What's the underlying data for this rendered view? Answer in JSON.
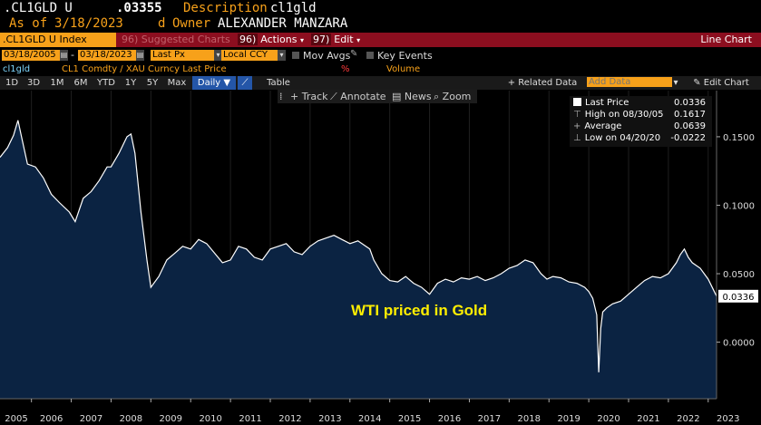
{
  "header": {
    "ticker": ".CL1GLD U",
    "price": ".03355",
    "description_label": "Description",
    "description_value": "cl1gld",
    "asof_label": "As of",
    "asof_value": "3/18/2023",
    "d_label": "d",
    "owner_label": "Owner",
    "owner_value": "ALEXANDER MANZARA"
  },
  "funcbar": {
    "security": ".CL1GLD U Index",
    "suggested": "Suggested Charts",
    "suggested_num": "96)",
    "actions": "Actions",
    "actions_num": "96)",
    "edit": "Edit",
    "edit_num": "97)",
    "title": "Line Chart"
  },
  "controls": {
    "start_date": "03/18/2005",
    "end_date": "03/18/2023",
    "field": "Last Px",
    "currency": "Local CCY",
    "mov_avgs": "Mov Avgs",
    "key_events": "Key Events"
  },
  "legend_row": {
    "series_id": "cl1gld",
    "series_desc": "CL1 Comdty / XAU Curncy Last Price",
    "pct": "%",
    "volume": "Volume"
  },
  "tabs": [
    "1D",
    "3D",
    "1M",
    "6M",
    "YTD",
    "1Y",
    "5Y",
    "Max"
  ],
  "period": "Daily",
  "table_label": "Table",
  "related_data": "Related Data",
  "add_data_placeholder": "Add Data",
  "edit_chart": "Edit Chart",
  "toolbar": {
    "track": "Track",
    "annotate": "Annotate",
    "news": "News",
    "zoom": "Zoom"
  },
  "legend_box": {
    "last_price_label": "Last Price",
    "last_price_value": "0.0336",
    "high_label": "High on 08/30/05",
    "high_value": "0.1617",
    "average_label": "Average",
    "average_value": "0.0639",
    "low_label": "Low on 04/20/20",
    "low_value": "-0.0222"
  },
  "annotation": "WTI priced in Gold",
  "last_value_tag": "0.0336",
  "colors": {
    "accent_orange": "#f7a11a",
    "bar_red": "#8c0e1f",
    "area_fill": "#0b2342",
    "line": "#ffffff",
    "annotation": "#ffee00"
  },
  "chart_data": {
    "type": "area",
    "title": "",
    "xlabel": "",
    "ylabel": "",
    "ylim": [
      -0.0413,
      0.1837
    ],
    "y_ticks": [
      "0.1500",
      "0.1000",
      "0.0500",
      "0.0000"
    ],
    "y_tick_values": [
      0.15,
      0.1,
      0.05,
      0.0
    ],
    "x_ticks": [
      "2005",
      "2006",
      "2007",
      "2008",
      "2009",
      "2010",
      "2011",
      "2012",
      "2013",
      "2014",
      "2015",
      "2016",
      "2017",
      "2018",
      "2019",
      "2020",
      "2021",
      "2022",
      "2023"
    ],
    "x_tick_years": [
      2005,
      2006,
      2007,
      2008,
      2009,
      2010,
      2011,
      2012,
      2013,
      2014,
      2015,
      2016,
      2017,
      2018,
      2019,
      2020,
      2021,
      2022,
      2023
    ],
    "xlim": [
      2005.21,
      2023.21
    ],
    "series": [
      {
        "x": [
          2005.21,
          2005.4,
          2005.55,
          2005.66,
          2005.75,
          2005.9,
          2006.1,
          2006.3,
          2006.5,
          2006.7,
          2006.95,
          2007.1,
          2007.3,
          2007.5,
          2007.7,
          2007.9,
          2008.0,
          2008.2,
          2008.4,
          2008.5,
          2008.6,
          2008.75,
          2008.9,
          2009.0,
          2009.2,
          2009.4,
          2009.6,
          2009.8,
          2010.0,
          2010.2,
          2010.4,
          2010.6,
          2010.8,
          2011.0,
          2011.2,
          2011.4,
          2011.6,
          2011.8,
          2012.0,
          2012.2,
          2012.4,
          2012.6,
          2012.8,
          2013.0,
          2013.2,
          2013.4,
          2013.6,
          2013.8,
          2014.0,
          2014.2,
          2014.4,
          2014.5,
          2014.6,
          2014.8,
          2015.0,
          2015.2,
          2015.4,
          2015.6,
          2015.8,
          2016.0,
          2016.2,
          2016.4,
          2016.6,
          2016.8,
          2017.0,
          2017.2,
          2017.4,
          2017.6,
          2017.8,
          2018.0,
          2018.2,
          2018.4,
          2018.6,
          2018.8,
          2018.95,
          2019.1,
          2019.3,
          2019.5,
          2019.7,
          2019.9,
          2020.0,
          2020.1,
          2020.2,
          2020.25,
          2020.3,
          2020.35,
          2020.45,
          2020.6,
          2020.8,
          2021.0,
          2021.2,
          2021.4,
          2021.6,
          2021.8,
          2022.0,
          2022.2,
          2022.3,
          2022.4,
          2022.5,
          2022.6,
          2022.8,
          2023.0,
          2023.21
        ],
        "y": [
          0.135,
          0.142,
          0.151,
          0.162,
          0.15,
          0.13,
          0.128,
          0.12,
          0.108,
          0.102,
          0.095,
          0.088,
          0.105,
          0.11,
          0.118,
          0.128,
          0.128,
          0.138,
          0.15,
          0.152,
          0.138,
          0.095,
          0.06,
          0.04,
          0.048,
          0.06,
          0.065,
          0.07,
          0.068,
          0.075,
          0.072,
          0.065,
          0.058,
          0.06,
          0.07,
          0.068,
          0.062,
          0.06,
          0.068,
          0.07,
          0.072,
          0.066,
          0.064,
          0.07,
          0.074,
          0.076,
          0.078,
          0.075,
          0.072,
          0.074,
          0.07,
          0.068,
          0.06,
          0.05,
          0.045,
          0.044,
          0.048,
          0.043,
          0.04,
          0.035,
          0.043,
          0.046,
          0.044,
          0.047,
          0.046,
          0.048,
          0.045,
          0.047,
          0.05,
          0.054,
          0.056,
          0.06,
          0.058,
          0.05,
          0.046,
          0.048,
          0.047,
          0.044,
          0.043,
          0.04,
          0.037,
          0.032,
          0.02,
          -0.022,
          0.01,
          0.022,
          0.025,
          0.028,
          0.03,
          0.035,
          0.04,
          0.045,
          0.048,
          0.047,
          0.05,
          0.058,
          0.064,
          0.068,
          0.062,
          0.058,
          0.054,
          0.046,
          0.0336
        ]
      }
    ]
  }
}
